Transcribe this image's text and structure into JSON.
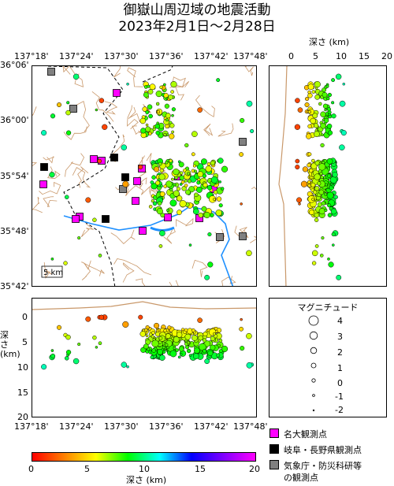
{
  "title": {
    "line1": "御嶽山周辺域の地震活動",
    "line2": "2023年2月1日～2月28日"
  },
  "map": {
    "lon_ticks": [
      "137°18'",
      "137°24'",
      "137°30'",
      "137°36'",
      "137°42'",
      "137°48'"
    ],
    "lat_ticks": [
      "36°06'",
      "36°00'",
      "35°54'",
      "35°48'",
      "35°42'"
    ],
    "scale_label": "5 km"
  },
  "ew_section": {
    "title": "深さ (km)",
    "depth_ticks": [
      "0",
      "5",
      "10",
      "15",
      "20"
    ]
  },
  "ns_section": {
    "ylabel": "深さ (km)",
    "depth_ticks": [
      "0",
      "5",
      "10",
      "15",
      "20"
    ],
    "lon_ticks": [
      "137°18'",
      "137°24'",
      "137°30'",
      "137°36'",
      "137°42'",
      "137°48'"
    ]
  },
  "magnitude_legend": {
    "title": "マグニチュード",
    "entries": [
      "4",
      "3",
      "2",
      "1",
      "0",
      "-1",
      "-2"
    ]
  },
  "station_legend": [
    {
      "label": "名大観測点",
      "color": "#ff00ff"
    },
    {
      "label": "岐阜・長野県観測点",
      "color": "#000000"
    },
    {
      "label": "気象庁・防災科研等",
      "color": "#808080"
    },
    {
      "label": "の観測点",
      "color": ""
    }
  ],
  "colorbar": {
    "ticks": [
      "0",
      "5",
      "10",
      "15",
      "20"
    ],
    "label": "深さ (km)"
  },
  "chart_data": {
    "type": "scatter",
    "x_range_lon": [
      137.3,
      137.8
    ],
    "y_range_lat": [
      35.7,
      36.1
    ],
    "depth_range_km": [
      0,
      20
    ],
    "magnitude_range": [
      -2,
      4
    ],
    "clusters": [
      {
        "name": "north",
        "lon": [
          137.58,
          137.65
        ],
        "lat": [
          35.97,
          36.04
        ],
        "depth_km": [
          3,
          8
        ]
      },
      {
        "name": "ontake-summit",
        "lon": [
          137.55,
          137.72
        ],
        "lat": [
          35.85,
          35.93
        ],
        "depth_km": [
          4,
          9
        ]
      }
    ]
  }
}
